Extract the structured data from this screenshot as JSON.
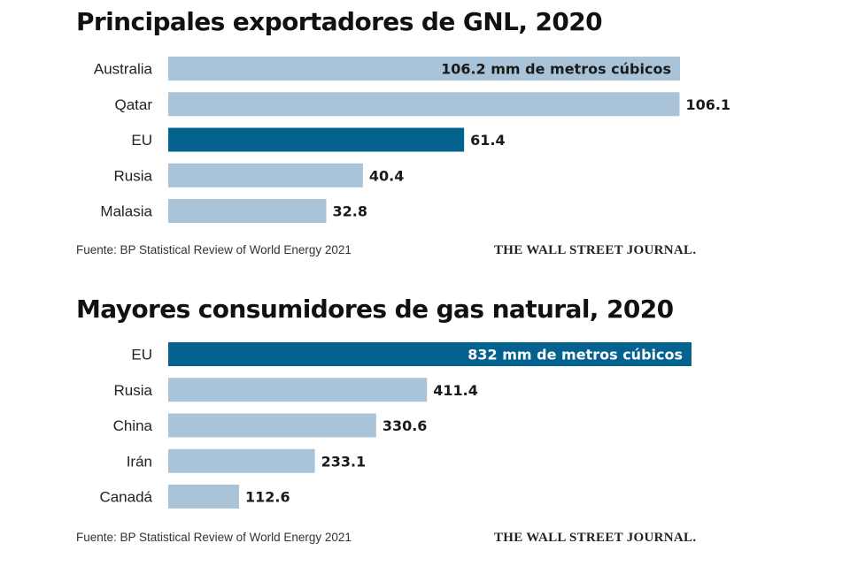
{
  "colors": {
    "highlight": "#04628f",
    "bar": "#a9c4d8",
    "text": "#1a1a1a"
  },
  "chart_data": [
    {
      "type": "bar",
      "orientation": "horizontal",
      "title": "Principales exportadores de GNL, 2020",
      "categories": [
        "Australia",
        "Qatar",
        "EU",
        "Rusia",
        "Malasia"
      ],
      "values": [
        106.2,
        106.1,
        61.4,
        40.4,
        32.8
      ],
      "value_labels": [
        "106.2 mm de metros cúbicos",
        "106.1",
        "61.4",
        "40.4",
        "32.8"
      ],
      "highlight": "EU",
      "source": "Fuente: BP Statistical Review of World Energy 2021",
      "credit": "THE WALL STREET JOURNAL."
    },
    {
      "type": "bar",
      "orientation": "horizontal",
      "title": "Mayores consumidores de gas natural, 2020",
      "categories": [
        "EU",
        "Rusia",
        "China",
        "Irán",
        "Canadá"
      ],
      "values": [
        832,
        411.4,
        330.6,
        233.1,
        112.6
      ],
      "value_labels": [
        "832 mm de metros cúbicos",
        "411.4",
        "330.6",
        "233.1",
        "112.6"
      ],
      "highlight": "EU",
      "source": "Fuente: BP Statistical Review of World Energy 2021",
      "credit": "THE WALL STREET JOURNAL."
    }
  ]
}
